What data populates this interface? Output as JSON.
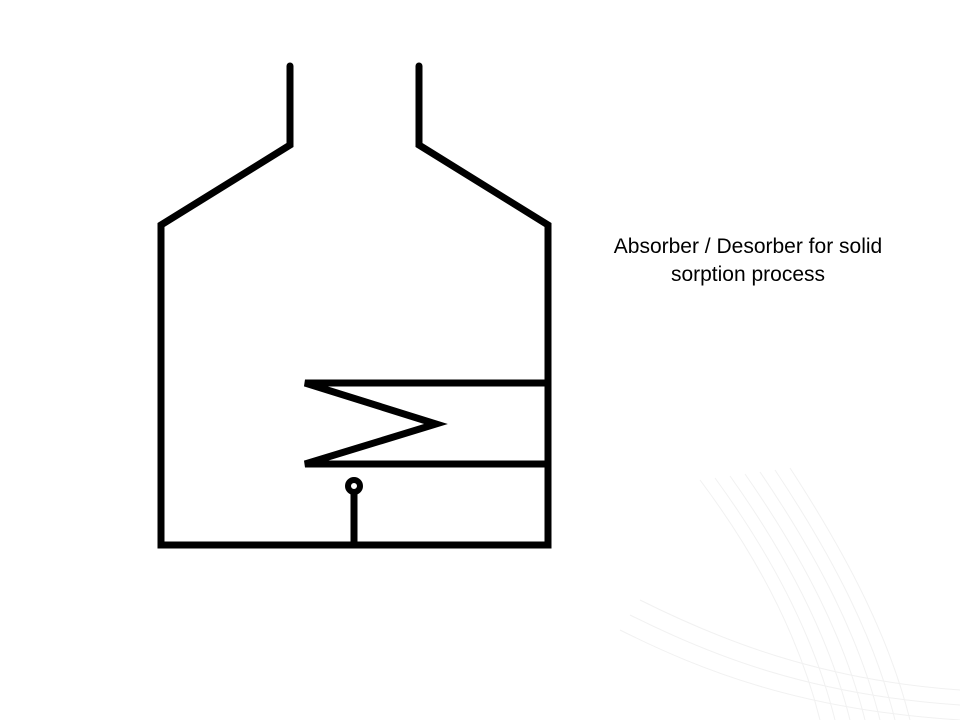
{
  "diagram": {
    "caption_line1": "Absorber / Desorber for solid",
    "caption_line2": "sorption process",
    "stroke_color": "#000000",
    "background_color": "#ffffff"
  }
}
